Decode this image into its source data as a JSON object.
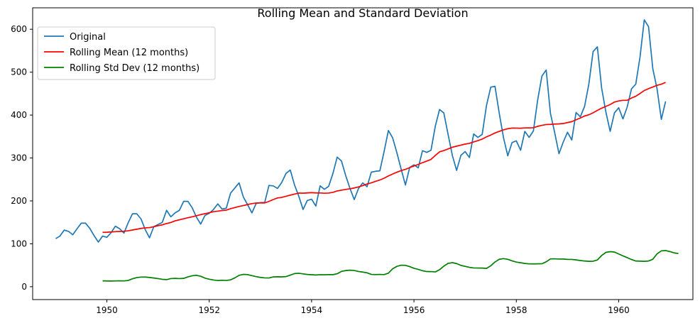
{
  "chart_data": {
    "type": "line",
    "title": "Rolling Mean and Standard Deviation",
    "xlabel": "",
    "ylabel": "",
    "xlim": [
      1948.55,
      1961.45
    ],
    "ylim": [
      -30,
      650
    ],
    "x_ticks": [
      1950,
      1952,
      1954,
      1956,
      1958,
      1960
    ],
    "x_tick_labels": [
      "1950",
      "1952",
      "1954",
      "1956",
      "1958",
      "1960"
    ],
    "y_ticks": [
      0,
      100,
      200,
      300,
      400,
      500,
      600
    ],
    "y_tick_labels": [
      "0",
      "100",
      "200",
      "300",
      "400",
      "500",
      "600"
    ],
    "grid": false,
    "legend_position": "top-left",
    "x_start": "1949-01",
    "x_end": "1960-12",
    "x_step": "1 month",
    "series": [
      {
        "name": "Original",
        "color": "#1f77b4",
        "values": [
          112,
          118,
          132,
          129,
          121,
          135,
          148,
          148,
          136,
          119,
          104,
          118,
          115,
          126,
          141,
          135,
          125,
          149,
          170,
          170,
          158,
          133,
          114,
          140,
          145,
          150,
          178,
          163,
          172,
          178,
          199,
          199,
          184,
          162,
          146,
          166,
          171,
          180,
          193,
          181,
          183,
          218,
          230,
          242,
          209,
          191,
          172,
          194,
          196,
          196,
          236,
          235,
          229,
          243,
          264,
          272,
          237,
          211,
          180,
          201,
          204,
          188,
          235,
          227,
          234,
          264,
          302,
          293,
          259,
          229,
          203,
          229,
          242,
          233,
          267,
          269,
          270,
          315,
          364,
          347,
          312,
          274,
          237,
          278,
          284,
          277,
          317,
          313,
          318,
          374,
          413,
          405,
          355,
          306,
          271,
          306,
          315,
          301,
          356,
          348,
          355,
          422,
          465,
          467,
          404,
          347,
          305,
          336,
          340,
          318,
          362,
          348,
          363,
          435,
          491,
          505,
          404,
          359,
          310,
          337,
          360,
          342,
          406,
          396,
          420,
          472,
          548,
          559,
          463,
          407,
          362,
          405,
          417,
          391,
          419,
          461,
          472,
          535,
          622,
          606,
          508,
          461,
          390,
          432
        ]
      },
      {
        "name": "Rolling Mean (12 months)",
        "color": "#ff0000",
        "values": [
          null,
          null,
          null,
          null,
          null,
          null,
          null,
          null,
          null,
          null,
          null,
          126.67,
          126.92,
          127.58,
          128.33,
          128.83,
          129.17,
          130.33,
          132.17,
          134.0,
          135.83,
          137.0,
          137.83,
          139.67,
          142.17,
          144.17,
          147.25,
          149.58,
          153.5,
          155.92,
          158.33,
          160.75,
          162.92,
          165.33,
          168.0,
          170.17,
          172.33,
          174.83,
          176.08,
          177.58,
          178.5,
          181.83,
          184.42,
          187.0,
          189.08,
          191.5,
          193.67,
          195.0,
          195.25,
          195.25,
          198.75,
          203.08,
          206.92,
          208.08,
          210.92,
          213.42,
          215.75,
          218.25,
          218.0,
          218.58,
          219.25,
          218.58,
          218.5,
          217.83,
          218.25,
          220.0,
          223.17,
          224.92,
          226.75,
          228.25,
          230.17,
          232.5,
          235.67,
          239.42,
          242.08,
          245.58,
          248.58,
          252.92,
          258.08,
          262.58,
          266.92,
          270.67,
          273.5,
          277.58,
          281.33,
          285.0,
          289.08,
          292.67,
          296.67,
          305.83,
          314.25,
          317.42,
          321.0,
          325.0,
          327.58,
          329.93,
          332.32,
          334.16,
          337.36,
          340.49,
          344.01,
          349.31,
          353.36,
          358.3,
          362.09,
          365.54,
          368.28,
          369.71,
          369.68,
          369.34,
          370.04,
          370.14,
          370.46,
          373.71,
          376.12,
          377.92,
          378.23,
          379.04,
          379.54,
          380.28,
          382.57,
          384.69,
          389.02,
          393.15,
          397.88,
          400.63,
          405.39,
          410.9,
          416.02,
          420.19,
          424.56,
          430.31,
          433.0,
          434.4,
          434.4,
          439.76,
          443.94,
          450.24,
          457.2,
          461.64,
          465.43,
          469.31,
          471.99,
          476.17
        ]
      },
      {
        "name": "Rolling Std Dev (12 months)",
        "color": "#008000",
        "values": [
          null,
          null,
          null,
          null,
          null,
          null,
          null,
          null,
          null,
          null,
          null,
          13.7,
          13.4,
          13.2,
          13.5,
          13.6,
          13.5,
          14.5,
          18.5,
          21.2,
          22.4,
          22.5,
          21.5,
          20.3,
          18.9,
          17.2,
          16.5,
          18.9,
          19.4,
          18.9,
          19.4,
          22.8,
          25.5,
          26.6,
          24.3,
          20.0,
          17.5,
          15.6,
          14.4,
          15.0,
          14.6,
          15.9,
          20.6,
          26.5,
          28.7,
          28.2,
          25.7,
          23.4,
          21.7,
          20.6,
          20.4,
          22.8,
          23.1,
          22.9,
          23.6,
          27.0,
          30.6,
          31.3,
          29.9,
          28.5,
          27.9,
          27.3,
          28.0,
          27.9,
          28.2,
          28.1,
          30.1,
          35.6,
          37.6,
          38.5,
          37.7,
          35.5,
          34.1,
          32.3,
          28.6,
          28.3,
          28.6,
          28.2,
          31.5,
          41.8,
          47.4,
          50.1,
          49.8,
          46.8,
          42.9,
          40.5,
          37.2,
          35.3,
          35.2,
          34.4,
          39.6,
          47.9,
          54.4,
          56.0,
          54.0,
          49.6,
          47.5,
          45.1,
          43.7,
          43.5,
          43.4,
          42.6,
          48.7,
          57.6,
          63.9,
          65.4,
          63.8,
          60.3,
          57.4,
          55.8,
          54.2,
          53.2,
          53.1,
          53.3,
          53.5,
          58.0,
          64.8,
          65.0,
          64.4,
          64.5,
          63.7,
          63.6,
          62.4,
          61.0,
          59.9,
          59.2,
          59.4,
          62.4,
          72.6,
          80.0,
          81.7,
          80.9,
          76.3,
          71.8,
          67.7,
          63.3,
          59.9,
          59.6,
          59.1,
          59.9,
          64.0,
          76.6,
          83.5,
          84.2,
          81.9,
          78.8,
          77.3
        ]
      }
    ]
  }
}
